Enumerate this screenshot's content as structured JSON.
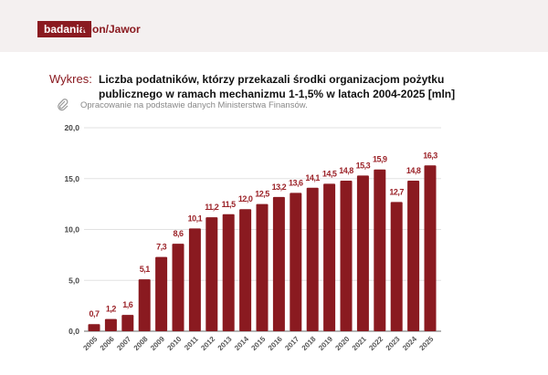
{
  "header": {
    "badge": "badania",
    "brand": "Klon/Jawor"
  },
  "caption": {
    "lead": "Wykres:",
    "title": "Liczba podatników, którzy przekazali środki organizacjom pożytku publicznego w ramach mechanizmu 1-1,5% w latach 2004-2025 [mln]",
    "source": "Opracowanie na podstawie danych Ministerstwa Finansów.",
    "source_icon": "paperclip-icon"
  },
  "chart_data": {
    "type": "bar",
    "categories": [
      "2005",
      "2006",
      "2007",
      "2008",
      "2009",
      "2010",
      "2011",
      "2012",
      "2013",
      "2014",
      "2015",
      "2016",
      "2017",
      "2018",
      "2019",
      "2020",
      "2021",
      "2022",
      "2023",
      "2024",
      "2025"
    ],
    "values": [
      0.7,
      1.2,
      1.6,
      5.1,
      7.3,
      8.6,
      10.1,
      11.2,
      11.5,
      12.0,
      12.5,
      13.2,
      13.6,
      14.1,
      14.5,
      14.8,
      15.3,
      15.9,
      12.7,
      14.8,
      16.3
    ],
    "data_labels": [
      "0,7",
      "1,2",
      "1,6",
      "5,1",
      "7,3",
      "8,6",
      "10,1",
      "11,2",
      "11,5",
      "12,0",
      "12,5",
      "13,2",
      "13,6",
      "14,1",
      "14,5",
      "14,8",
      "15,3",
      "15,9",
      "12,7",
      "14,8",
      "16,3"
    ],
    "yticks": [
      "0,0",
      "5,0",
      "10,0",
      "15,0",
      "20,0"
    ],
    "ylim": [
      0,
      20
    ],
    "grid": true,
    "bar_color": "#8a1a20",
    "label_color": "#9b2228"
  }
}
